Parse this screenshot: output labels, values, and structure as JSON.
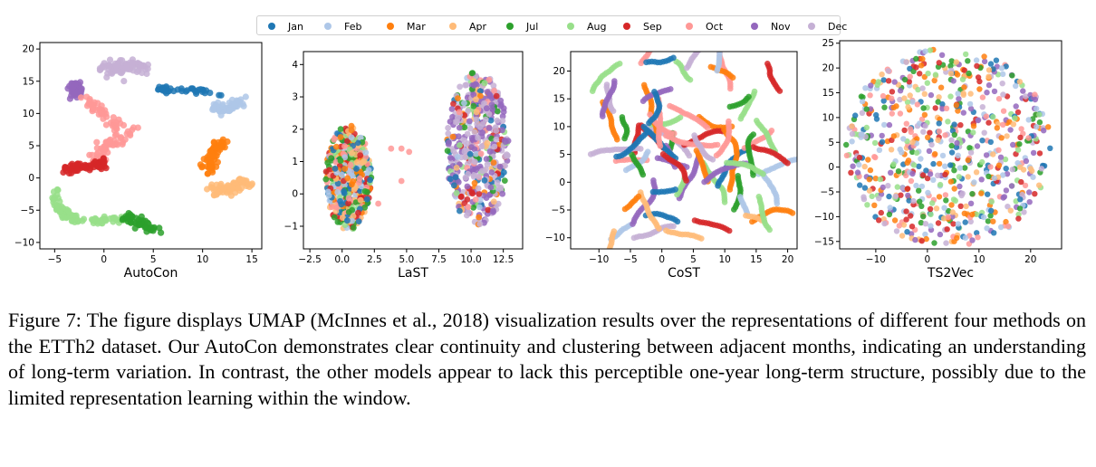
{
  "legend": [
    {
      "label": "Jan",
      "color": "#1f77b4"
    },
    {
      "label": "Feb",
      "color": "#aec7e8"
    },
    {
      "label": "Mar",
      "color": "#ff7f0e"
    },
    {
      "label": "Apr",
      "color": "#ffbb78"
    },
    {
      "label": "Jul",
      "color": "#2ca02c"
    },
    {
      "label": "Aug",
      "color": "#98df8a"
    },
    {
      "label": "Sep",
      "color": "#d62728"
    },
    {
      "label": "Oct",
      "color": "#ff9896"
    },
    {
      "label": "Nov",
      "color": "#9467bd"
    },
    {
      "label": "Dec",
      "color": "#c5b0d5"
    }
  ],
  "chart_data": [
    {
      "type": "scatter",
      "title": "AutoCon",
      "xlim": [
        -6.5,
        16
      ],
      "ylim": [
        -11,
        21
      ],
      "xticks": [
        -5,
        0,
        5,
        10,
        15
      ],
      "yticks": [
        -10,
        -5,
        0,
        5,
        10,
        15,
        20
      ],
      "xtick_labels": [
        "−5",
        "0",
        "5",
        "10",
        "15"
      ],
      "ytick_labels": [
        "−10",
        "−5",
        "0",
        "5",
        "10",
        "15",
        "20"
      ],
      "clusters": [
        {
          "month": "Dec",
          "path": [
            [
              0,
              16.5
            ],
            [
              2,
              17.5
            ],
            [
              4,
              17
            ]
          ],
          "spread": 1.0,
          "count": 90
        },
        {
          "month": "Nov",
          "path": [
            [
              -3,
              15
            ],
            [
              -2.8,
              13
            ]
          ],
          "spread": 0.6,
          "count": 50
        },
        {
          "month": "Oct",
          "path": [
            [
              -2,
              12
            ],
            [
              0,
              10
            ],
            [
              2.5,
              7
            ],
            [
              0,
              4.5
            ],
            [
              -1,
              2.5
            ]
          ],
          "spread": 0.7,
          "count": 110
        },
        {
          "month": "Sep",
          "path": [
            [
              -4,
              1.5
            ],
            [
              -2,
              1.8
            ],
            [
              0.5,
              2.2
            ]
          ],
          "spread": 0.6,
          "count": 60
        },
        {
          "month": "Aug",
          "path": [
            [
              -5,
              -2
            ],
            [
              -4.5,
              -5
            ],
            [
              -3,
              -6.5
            ],
            [
              0,
              -6.5
            ],
            [
              2.5,
              -6.5
            ]
          ],
          "spread": 0.5,
          "count": 90
        },
        {
          "month": "Jul",
          "path": [
            [
              2,
              -6
            ],
            [
              4,
              -7
            ],
            [
              5.5,
              -8.5
            ]
          ],
          "spread": 0.5,
          "count": 50
        },
        {
          "month": "Jan",
          "path": [
            [
              5.5,
              14
            ],
            [
              6.5,
              13.5
            ],
            [
              9,
              13.8
            ],
            [
              12,
              12.5
            ]
          ],
          "spread": 0.4,
          "count": 40
        },
        {
          "month": "Feb",
          "path": [
            [
              11,
              11
            ],
            [
              12.5,
              10.5
            ],
            [
              14,
              12
            ]
          ],
          "spread": 0.6,
          "count": 60
        },
        {
          "month": "Mar",
          "path": [
            [
              12,
              6
            ],
            [
              11,
              3.5
            ],
            [
              10.5,
              1
            ]
          ],
          "spread": 0.6,
          "count": 70
        },
        {
          "month": "Apr",
          "path": [
            [
              11,
              -1.5
            ],
            [
              12.5,
              -2
            ],
            [
              14.5,
              -0.5
            ]
          ],
          "spread": 0.7,
          "count": 70
        }
      ]
    },
    {
      "type": "scatter",
      "title": "LaST",
      "xlim": [
        -3,
        14
      ],
      "ylim": [
        -1.7,
        4.4
      ],
      "xticks": [
        -2.5,
        0,
        2.5,
        5,
        7.5,
        10,
        12.5
      ],
      "yticks": [
        -1,
        0,
        1,
        2,
        3,
        4
      ],
      "xtick_labels": [
        "−2.5",
        "0.0",
        "2.5",
        "5.0",
        "7.5",
        "10.0",
        "12.5"
      ],
      "ytick_labels": [
        "−1",
        "0",
        "1",
        "2",
        "3",
        "4"
      ],
      "blobs": [
        {
          "center": [
            0.5,
            0.5
          ],
          "radius": [
            2.2,
            1.9
          ],
          "count": 520
        },
        {
          "center": [
            10.5,
            1.4
          ],
          "radius": [
            3.0,
            2.8
          ],
          "count": 520
        }
      ]
    },
    {
      "type": "scatter",
      "title": "CoST",
      "xlim": [
        -14.5,
        21.5
      ],
      "ylim": [
        -12,
        23.5
      ],
      "xticks": [
        -10,
        -5,
        0,
        5,
        10,
        15,
        20
      ],
      "yticks": [
        -10,
        -5,
        0,
        5,
        10,
        15,
        20
      ],
      "xtick_labels": [
        "−10",
        "−5",
        "0",
        "5",
        "10",
        "15",
        "20"
      ],
      "ytick_labels": [
        "−10",
        "−5",
        "0",
        "5",
        "10",
        "15",
        "20"
      ]
    },
    {
      "type": "scatter",
      "title": "TS2Vec",
      "xlim": [
        -17,
        26
      ],
      "ylim": [
        -16.5,
        25.5
      ],
      "xticks": [
        -10,
        0,
        10,
        20
      ],
      "yticks": [
        -15,
        -10,
        -5,
        0,
        5,
        10,
        15,
        20,
        25
      ],
      "xtick_labels": [
        "−10",
        "0",
        "10",
        "20"
      ],
      "ytick_labels": [
        "−15",
        "−10",
        "−5",
        "0",
        "5",
        "10",
        "15",
        "20",
        "25"
      ],
      "disk": {
        "center": [
          4,
          4
        ],
        "radius": 20,
        "count": 700
      }
    }
  ],
  "caption": "Figure 7: The figure displays UMAP (McInnes et al., 2018) visualization results over the representations of different four methods on the ETTh2 dataset. Our AutoCon demonstrates clear continuity and clustering between adjacent months, indicating an understanding of long-term variation. In contrast, the other models appear to lack this perceptible one-year long-term structure, possibly due to the limited representation learning within the window."
}
